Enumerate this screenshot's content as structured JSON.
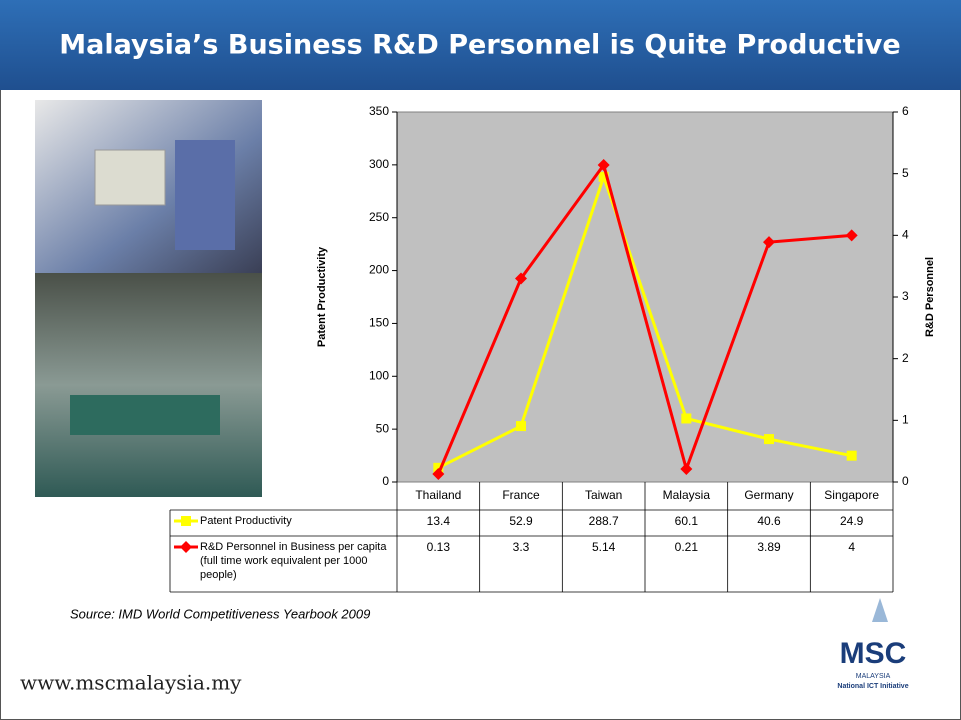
{
  "header": {
    "title": "Malaysia’s Business R&D Personnel is Quite Productive"
  },
  "chart_data": {
    "type": "line",
    "categories": [
      "Thailand",
      "France",
      "Taiwan",
      "Malaysia",
      "Germany",
      "Singapore"
    ],
    "series": [
      {
        "name": "Patent Productivity",
        "color": "#ffff00",
        "marker": "square",
        "values": [
          13.4,
          52.9,
          288.7,
          60.1,
          40.6,
          24.9
        ]
      },
      {
        "name": "R&D Personnel in Business per capita (full time work equivalent per 1000 people)",
        "color": "#ff0000",
        "marker": "diamond",
        "axis": "y2",
        "values": [
          0.13,
          3.3,
          5.14,
          0.21,
          3.89,
          4
        ]
      }
    ],
    "ylabel": "Patent Productivity",
    "y2label": "R&D Personnel",
    "ylim": [
      0,
      350
    ],
    "yticks": [
      0,
      50,
      100,
      150,
      200,
      250,
      300,
      350
    ],
    "y2lim": [
      0,
      6
    ],
    "y2ticks": [
      0,
      1,
      2,
      3,
      4,
      5,
      6
    ],
    "plot_background": "#c0c0c0"
  },
  "source": "Source: IMD World Competitiveness Yearbook 2009",
  "footer": {
    "url": "www.mscmalaysia.my"
  },
  "logo": {
    "name": "MSC",
    "country": "MALAYSIA",
    "tagline": "National ICT Initiative"
  }
}
